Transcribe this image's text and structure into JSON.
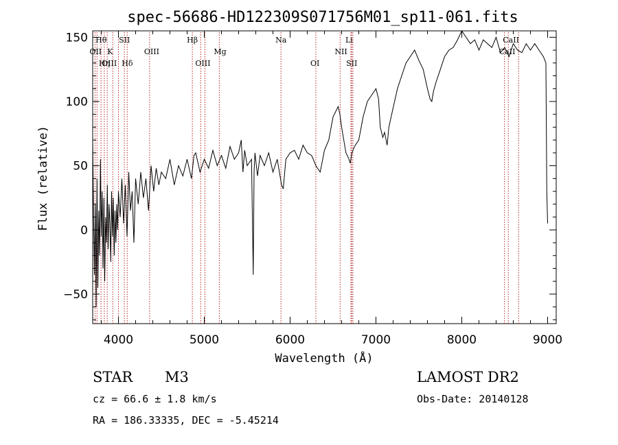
{
  "chart_data": {
    "type": "line",
    "title": "spec-56686-HD122309S071756M01_sp11-061.fits",
    "xlabel": "Wavelength (Å)",
    "ylabel": "Flux (relative)",
    "xlim": [
      3700,
      9100
    ],
    "ylim": [
      -73,
      155
    ],
    "xticks": [
      4000,
      5000,
      6000,
      7000,
      8000,
      9000
    ],
    "yticks": [
      -50,
      0,
      50,
      100,
      150
    ],
    "grid": false,
    "series": [
      {
        "x": [
          3700,
          3710,
          3720,
          3730,
          3740,
          3750,
          3760,
          3770,
          3780,
          3790,
          3800,
          3810,
          3820,
          3830,
          3840,
          3850,
          3860,
          3870,
          3880,
          3890,
          3900,
          3910,
          3920,
          3930,
          3940,
          3950,
          3960,
          3970,
          3980,
          3990,
          4000,
          4020,
          4040,
          4060,
          4080,
          4100,
          4120,
          4140,
          4160,
          4180,
          4200,
          4230,
          4260,
          4290,
          4320,
          4350,
          4380,
          4410,
          4440,
          4470,
          4500,
          4550,
          4600,
          4650,
          4700,
          4750,
          4800,
          4850,
          4880,
          4900,
          4950,
          5000,
          5050,
          5100,
          5150,
          5200,
          5250,
          5300,
          5350,
          5400,
          5430,
          5450,
          5470,
          5500,
          5550,
          5570,
          5580,
          5590,
          5620,
          5650,
          5700,
          5750,
          5800,
          5850,
          5900,
          5920,
          5950,
          6000,
          6050,
          6100,
          6150,
          6200,
          6250,
          6300,
          6350,
          6400,
          6450,
          6500,
          6530,
          6560,
          6580,
          6600,
          6620,
          6650,
          6680,
          6700,
          6720,
          6750,
          6800,
          6850,
          6900,
          6950,
          7000,
          7030,
          7050,
          7080,
          7100,
          7130,
          7150,
          7200,
          7250,
          7300,
          7350,
          7400,
          7450,
          7500,
          7550,
          7600,
          7630,
          7650,
          7670,
          7700,
          7750,
          7800,
          7850,
          7900,
          7950,
          8000,
          8050,
          8100,
          8150,
          8200,
          8250,
          8300,
          8350,
          8400,
          8450,
          8500,
          8550,
          8600,
          8650,
          8700,
          8750,
          8800,
          8850,
          8900,
          8950,
          8980,
          8990,
          9000
        ],
        "y": [
          70,
          10,
          -35,
          20,
          -60,
          40,
          -45,
          15,
          -20,
          55,
          -5,
          30,
          -30,
          25,
          -40,
          10,
          -10,
          35,
          -15,
          20,
          5,
          -25,
          30,
          -5,
          25,
          -20,
          15,
          -10,
          20,
          0,
          30,
          10,
          40,
          5,
          35,
          -5,
          45,
          15,
          30,
          -10,
          40,
          20,
          45,
          25,
          40,
          15,
          50,
          30,
          48,
          35,
          45,
          40,
          55,
          35,
          50,
          42,
          55,
          40,
          58,
          60,
          45,
          55,
          48,
          62,
          50,
          58,
          48,
          65,
          55,
          60,
          70,
          45,
          62,
          50,
          55,
          -35,
          45,
          60,
          42,
          58,
          50,
          60,
          45,
          55,
          35,
          32,
          55,
          60,
          62,
          55,
          66,
          60,
          58,
          50,
          45,
          62,
          70,
          88,
          92,
          96,
          90,
          80,
          72,
          60,
          56,
          52,
          60,
          65,
          70,
          88,
          100,
          105,
          110,
          102,
          80,
          72,
          76,
          66,
          80,
          95,
          110,
          120,
          130,
          135,
          140,
          132,
          125,
          110,
          102,
          100,
          108,
          115,
          125,
          135,
          140,
          142,
          148,
          155,
          150,
          145,
          148,
          140,
          148,
          145,
          142,
          150,
          138,
          142,
          135,
          145,
          140,
          138,
          145,
          140,
          145,
          140,
          135,
          130,
          30,
          5
        ]
      }
    ],
    "lines": [
      {
        "label": "Hθ",
        "x": 3797,
        "row": 0
      },
      {
        "label": "OII",
        "x": 3727,
        "row": 1
      },
      {
        "label": "OIII",
        "x": 3869,
        "row": 2
      },
      {
        "label": "Hη",
        "x": 3835,
        "row": 2
      },
      {
        "label": "K",
        "x": 3934,
        "row": 1
      },
      {
        "label": "SII",
        "x": 4069,
        "row": 0
      },
      {
        "label": "Hδ",
        "x": 4102,
        "row": 2
      },
      {
        "label": "OIII",
        "x": 4363,
        "row": 1
      },
      {
        "label": "Hβ",
        "x": 4861,
        "row": 0
      },
      {
        "label": "OIII",
        "x": 4959,
        "row": 2
      },
      {
        "label": "Mg",
        "x": 5175,
        "row": 1
      },
      {
        "label": "Na",
        "x": 5893,
        "row": 0
      },
      {
        "label": "OI",
        "x": 6300,
        "row": 2
      },
      {
        "label": "NII",
        "x": 6583,
        "row": 1
      },
      {
        "label": "Li",
        "x": 6708,
        "row": 0
      },
      {
        "label": "SII",
        "x": 6717,
        "row": 2
      },
      {
        "label": "CaII",
        "x": 8542,
        "row": 0
      },
      {
        "label": "CaII",
        "x": 8498,
        "row": 1
      }
    ],
    "extra_markers_x": [
      3750,
      4000,
      5007,
      6731,
      8662
    ],
    "colors": {
      "spectrum": "#000000",
      "lines": "#b22222"
    }
  },
  "info": {
    "class": "STAR",
    "subclass": "M3",
    "survey": "LAMOST DR2",
    "cz": "cz = 66.6 ± 1.8 km/s",
    "obs_date": "Obs-Date: 20140128",
    "radec": "RA = 186.33335, DEC =  -5.45214"
  }
}
